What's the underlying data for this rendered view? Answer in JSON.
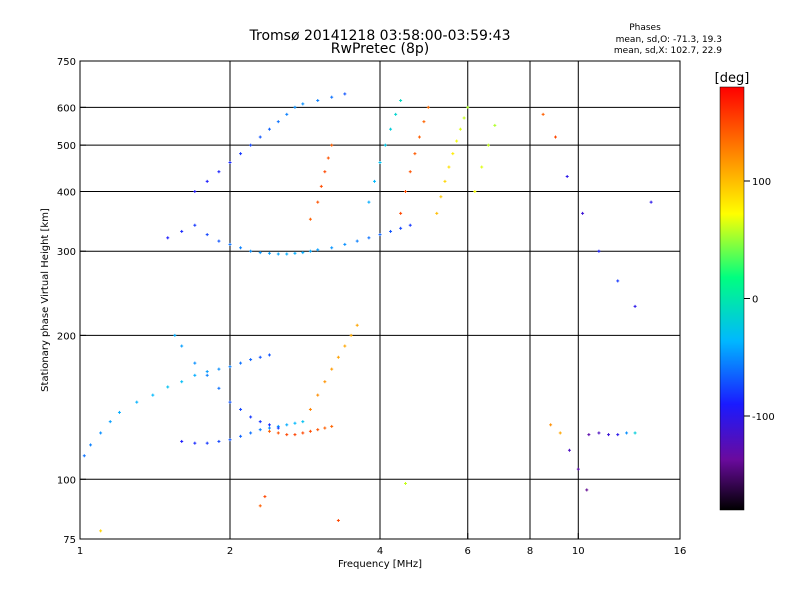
{
  "header": {
    "title_line1": "Tromsø 20141218 03:58:00-03:59:43",
    "title_line2": "RwPretec (8p)",
    "phase_title": "Phases",
    "phase_o": "mean, sd,O: -71.3, 19.3",
    "phase_x": "mean, sd,X: 102.7, 22.9"
  },
  "chart_data": {
    "type": "scatter",
    "xlabel": "Frequency [MHz]",
    "ylabel": "Stationary phase Virtual Height [km]",
    "x_scale": "log",
    "y_scale": "log",
    "xlim": [
      1,
      16
    ],
    "ylim": [
      75,
      750
    ],
    "x_ticks": [
      1,
      2,
      4,
      6,
      8,
      10,
      16
    ],
    "y_ticks": [
      75,
      100,
      200,
      300,
      400,
      500,
      600,
      750
    ],
    "x_grid": [
      2,
      4,
      6,
      8,
      10
    ],
    "y_grid": [
      100,
      200,
      300,
      400,
      500,
      600
    ],
    "grid": true,
    "colorbar": {
      "label": "[deg]",
      "range": [
        -180,
        180
      ],
      "ticks": [
        100,
        0,
        -100
      ],
      "colors": [
        "#000000",
        "#6a0a9e",
        "#1a1aff",
        "#00b8ff",
        "#00ff80",
        "#ffff00",
        "#ff8000",
        "#ff0000"
      ]
    },
    "series": [
      {
        "x": [
          1.02,
          1.05,
          1.1,
          1.15,
          1.2,
          1.3,
          1.4,
          1.5,
          1.6,
          1.7,
          1.8,
          1.9,
          2.0,
          2.1,
          2.2,
          2.3,
          2.4
        ],
        "y": [
          112,
          118,
          125,
          132,
          138,
          145,
          150,
          156,
          160,
          165,
          168,
          170,
          172,
          175,
          178,
          180,
          182
        ],
        "phase": [
          -60,
          -55,
          -50,
          -45,
          -40,
          -38,
          -35,
          -30,
          -32,
          -40,
          -45,
          -50,
          -55,
          -60,
          -65,
          -70,
          -70
        ]
      },
      {
        "x": [
          1.6,
          1.7,
          1.8,
          1.9,
          2.0,
          2.1,
          2.2,
          2.3,
          2.4,
          2.5,
          2.6,
          2.7,
          2.8
        ],
        "y": [
          120,
          119,
          119,
          120,
          121,
          123,
          125,
          127,
          128,
          129,
          130,
          131,
          132
        ],
        "phase": [
          -90,
          -85,
          -80,
          -75,
          -70,
          -65,
          -60,
          -55,
          -50,
          -45,
          -40,
          -35,
          -30
        ]
      },
      {
        "x": [
          1.55,
          1.6,
          1.7,
          1.8,
          1.9,
          2.0,
          2.1,
          2.2,
          2.3,
          2.4,
          2.5
        ],
        "y": [
          200,
          190,
          175,
          165,
          155,
          145,
          140,
          135,
          132,
          130,
          128
        ],
        "phase": [
          -40,
          -45,
          -50,
          -55,
          -60,
          -70,
          -75,
          -80,
          -82,
          -85,
          -80
        ]
      },
      {
        "x": [
          2.4,
          2.5,
          2.6,
          2.7,
          2.8,
          2.9,
          3.0,
          3.1,
          3.2
        ],
        "y": [
          126,
          125,
          124,
          124,
          125,
          126,
          127,
          128,
          129
        ],
        "phase": [
          140,
          145,
          150,
          152,
          150,
          148,
          145,
          140,
          138
        ]
      },
      {
        "x": [
          2.9,
          3.0,
          3.1,
          3.2,
          3.3,
          3.4,
          3.5,
          3.6
        ],
        "y": [
          140,
          150,
          160,
          170,
          180,
          190,
          200,
          210
        ],
        "phase": [
          125,
          120,
          118,
          115,
          112,
          110,
          108,
          110
        ]
      },
      {
        "x": [
          1.5,
          1.6,
          1.7,
          1.8,
          1.9,
          2.0,
          2.1,
          2.2,
          2.3,
          2.4,
          2.5,
          2.6,
          2.7,
          2.8,
          2.9,
          3.0,
          3.2,
          3.4,
          3.6,
          3.8,
          4.0,
          4.2,
          4.4,
          4.6
        ],
        "y": [
          320,
          330,
          340,
          325,
          315,
          310,
          305,
          300,
          298,
          297,
          296,
          296,
          297,
          298,
          300,
          302,
          305,
          310,
          315,
          320,
          325,
          330,
          335,
          340
        ],
        "phase": [
          -90,
          -85,
          -80,
          -75,
          -70,
          -60,
          -55,
          -50,
          -48,
          -45,
          -42,
          -40,
          -40,
          -40,
          -42,
          -45,
          -48,
          -50,
          -55,
          -60,
          -65,
          -70,
          -75,
          -80
        ]
      },
      {
        "x": [
          1.7,
          1.8,
          1.9,
          2.0,
          2.1,
          2.2,
          2.3,
          2.4,
          2.5,
          2.6,
          2.7,
          2.8,
          3.0,
          3.2,
          3.4
        ],
        "y": [
          400,
          420,
          440,
          460,
          480,
          500,
          520,
          540,
          560,
          580,
          600,
          610,
          620,
          630,
          640
        ],
        "phase": [
          -95,
          -90,
          -88,
          -85,
          -80,
          -75,
          -70,
          -65,
          -60,
          -55,
          -50,
          -50,
          -55,
          -60,
          -70
        ]
      },
      {
        "x": [
          2.9,
          3.0,
          3.05,
          3.1,
          3.15,
          3.2
        ],
        "y": [
          350,
          380,
          410,
          440,
          470,
          500
        ],
        "phase": [
          140,
          145,
          148,
          150,
          145,
          140
        ]
      },
      {
        "x": [
          3.8,
          3.9,
          4.0,
          4.1,
          4.2,
          4.3,
          4.4
        ],
        "y": [
          380,
          420,
          460,
          500,
          540,
          580,
          620
        ],
        "phase": [
          -40,
          -35,
          -30,
          -25,
          -20,
          -15,
          -10
        ]
      },
      {
        "x": [
          4.4,
          4.5,
          4.6,
          4.7,
          4.8,
          4.9,
          5.0
        ],
        "y": [
          360,
          400,
          440,
          480,
          520,
          560,
          600
        ],
        "phase": [
          150,
          148,
          145,
          142,
          140,
          138,
          135
        ]
      },
      {
        "x": [
          5.2,
          5.3,
          5.4,
          5.5,
          5.6,
          5.7,
          5.8,
          5.9,
          6.0
        ],
        "y": [
          360,
          390,
          420,
          450,
          480,
          510,
          540,
          570,
          600
        ],
        "phase": [
          100,
          95,
          90,
          85,
          80,
          70,
          65,
          60,
          55
        ]
      },
      {
        "x": [
          6.2,
          6.4,
          6.6,
          6.8
        ],
        "y": [
          400,
          450,
          500,
          550
        ],
        "phase": [
          70,
          65,
          60,
          55
        ]
      },
      {
        "x": [
          10.5,
          11.0,
          11.5,
          12.0,
          12.5,
          13.0
        ],
        "y": [
          124,
          125,
          124,
          124,
          125,
          125
        ],
        "phase": [
          -130,
          -120,
          -110,
          -100,
          -50,
          -20
        ]
      },
      {
        "x": [
          8.5,
          9.0,
          9.5,
          10.2,
          11.0,
          12.0,
          13.0,
          14.0
        ],
        "y": [
          580,
          520,
          430,
          360,
          300,
          260,
          230,
          380
        ],
        "phase": [
          140,
          150,
          -100,
          -110,
          -90,
          -80,
          -100,
          -100
        ]
      },
      {
        "x": [
          8.8,
          9.2,
          9.6,
          10.0,
          10.4
        ],
        "y": [
          130,
          125,
          115,
          105,
          95
        ],
        "phase": [
          120,
          110,
          -120,
          -130,
          -140
        ]
      },
      {
        "x": [
          2.3,
          2.35,
          3.3,
          4.5,
          1.1
        ],
        "y": [
          88,
          92,
          82,
          98,
          78
        ],
        "phase": [
          140,
          150,
          150,
          60,
          90
        ]
      }
    ]
  }
}
